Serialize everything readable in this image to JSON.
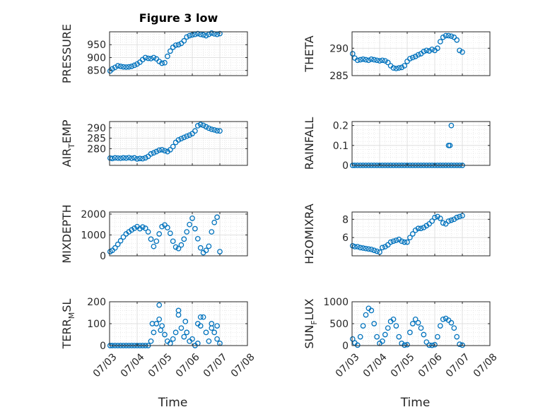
{
  "figure": {
    "title": "Figure 3 low",
    "marker_color": "#0072bd",
    "x_tick_labels": [
      "07/03",
      "07/04",
      "07/05",
      "07/06",
      "07/07",
      "07/08"
    ],
    "xlabel": "Time"
  },
  "chart_data": [
    {
      "type": "scatter",
      "ylabel": "PRESSURE",
      "ylabel_sub": "",
      "ylabel_suffix": "",
      "title": "Figure 3 low",
      "xlim": [
        0,
        5
      ],
      "ylim": [
        830,
        1000
      ],
      "yticks": [
        850,
        900,
        950
      ],
      "grid": true,
      "x": [
        0.02,
        0.1,
        0.2,
        0.3,
        0.4,
        0.5,
        0.6,
        0.7,
        0.8,
        0.9,
        1.0,
        1.1,
        1.2,
        1.3,
        1.4,
        1.5,
        1.6,
        1.7,
        1.8,
        1.9,
        2.0,
        2.1,
        2.2,
        2.3,
        2.4,
        2.5,
        2.6,
        2.7,
        2.8,
        2.9,
        3.0,
        3.1,
        3.2,
        3.3,
        3.4,
        3.5,
        3.6,
        3.7,
        3.8,
        3.9,
        4.0
      ],
      "y": [
        848,
        856,
        862,
        868,
        866,
        864,
        863,
        864,
        866,
        870,
        875,
        882,
        892,
        900,
        897,
        896,
        900,
        895,
        885,
        878,
        880,
        905,
        925,
        940,
        948,
        950,
        955,
        965,
        980,
        985,
        988,
        990,
        993,
        990,
        988,
        985,
        990,
        995,
        992,
        990,
        993
      ]
    },
    {
      "type": "scatter",
      "ylabel": "THETA",
      "ylabel_sub": "",
      "ylabel_suffix": "",
      "xlim": [
        0,
        5
      ],
      "ylim": [
        285,
        293
      ],
      "yticks": [
        285,
        290
      ],
      "grid": true,
      "x": [
        0.02,
        0.1,
        0.2,
        0.3,
        0.4,
        0.5,
        0.6,
        0.7,
        0.8,
        0.9,
        1.0,
        1.1,
        1.2,
        1.3,
        1.4,
        1.5,
        1.6,
        1.7,
        1.8,
        1.9,
        2.0,
        2.1,
        2.2,
        2.3,
        2.4,
        2.5,
        2.6,
        2.7,
        2.8,
        2.9,
        3.0,
        3.1,
        3.2,
        3.3,
        3.4,
        3.5,
        3.6,
        3.7,
        3.8,
        3.9,
        4.0
      ],
      "y": [
        289,
        288.2,
        287.8,
        287.9,
        288.0,
        287.9,
        287.8,
        288.0,
        287.9,
        287.8,
        287.7,
        287.8,
        287.7,
        287.4,
        286.8,
        286.4,
        286.3,
        286.4,
        286.5,
        286.8,
        287.6,
        288.1,
        288.3,
        288.5,
        288.8,
        289.0,
        289.4,
        289.6,
        289.5,
        289.8,
        289.6,
        290.0,
        291.2,
        292.0,
        292.3,
        292.3,
        292.2,
        292.0,
        291.5,
        289.6,
        289.3
      ]
    },
    {
      "type": "scatter",
      "ylabel": "AIR",
      "ylabel_sub": "T",
      "ylabel_suffix": "EMP",
      "xlim": [
        0,
        5
      ],
      "ylim": [
        272,
        293
      ],
      "yticks": [
        280,
        285,
        290
      ],
      "grid": true,
      "x": [
        0.02,
        0.1,
        0.2,
        0.3,
        0.4,
        0.5,
        0.6,
        0.7,
        0.8,
        0.9,
        1.0,
        1.1,
        1.2,
        1.3,
        1.4,
        1.5,
        1.6,
        1.7,
        1.8,
        1.9,
        2.0,
        2.1,
        2.2,
        2.3,
        2.4,
        2.5,
        2.6,
        2.7,
        2.8,
        2.9,
        3.0,
        3.1,
        3.2,
        3.3,
        3.4,
        3.5,
        3.6,
        3.7,
        3.8,
        3.9,
        4.0
      ],
      "y": [
        275.5,
        275.3,
        275.6,
        275.5,
        275.4,
        275.6,
        275.5,
        275.7,
        275.4,
        275.6,
        275.1,
        275.3,
        275.2,
        275.6,
        276.3,
        277.5,
        278.0,
        278.6,
        279.3,
        279.5,
        279.0,
        278.6,
        279.5,
        281.0,
        283.0,
        284.2,
        284.8,
        285.4,
        286.0,
        286.5,
        287.2,
        288.5,
        291.0,
        291.6,
        291.2,
        290.5,
        289.8,
        289.3,
        289.0,
        288.6,
        288.5
      ]
    },
    {
      "type": "scatter",
      "ylabel": "RAINFALL",
      "ylabel_sub": "",
      "ylabel_suffix": "",
      "xlim": [
        0,
        5
      ],
      "ylim": [
        0,
        0.22
      ],
      "yticks": [
        0,
        0.1,
        0.2
      ],
      "grid": true,
      "x": [
        0.02,
        0.1,
        0.2,
        0.3,
        0.4,
        0.5,
        0.6,
        0.7,
        0.8,
        0.9,
        1.0,
        1.1,
        1.2,
        1.3,
        1.4,
        1.5,
        1.6,
        1.7,
        1.8,
        1.9,
        2.0,
        2.1,
        2.2,
        2.3,
        2.4,
        2.5,
        2.6,
        2.7,
        2.8,
        2.9,
        3.0,
        3.1,
        3.2,
        3.3,
        3.4,
        3.5,
        3.6,
        3.7,
        3.8,
        3.9,
        4.0,
        3.5,
        3.55,
        3.6
      ],
      "y": [
        0,
        0,
        0,
        0,
        0,
        0,
        0,
        0,
        0,
        0,
        0,
        0,
        0,
        0,
        0,
        0,
        0,
        0,
        0,
        0,
        0,
        0,
        0,
        0,
        0,
        0,
        0,
        0,
        0,
        0,
        0,
        0,
        0,
        0,
        0,
        0,
        0,
        0,
        0,
        0,
        0,
        0.1,
        0.1,
        0.2
      ]
    },
    {
      "type": "scatter",
      "ylabel": "MIXDEPTH",
      "ylabel_sub": "",
      "ylabel_suffix": "",
      "xlim": [
        0,
        5
      ],
      "ylim": [
        0,
        2100
      ],
      "yticks": [
        0,
        1000,
        2000
      ],
      "grid": true,
      "x": [
        0.02,
        0.1,
        0.2,
        0.3,
        0.4,
        0.5,
        0.6,
        0.7,
        0.8,
        0.9,
        1.0,
        1.1,
        1.2,
        1.3,
        1.4,
        1.5,
        1.6,
        1.7,
        1.8,
        1.9,
        2.0,
        2.1,
        2.2,
        2.3,
        2.4,
        2.5,
        2.6,
        2.7,
        2.8,
        2.9,
        3.0,
        3.1,
        3.2,
        3.3,
        3.4,
        3.5,
        3.6,
        3.7,
        3.8,
        3.9,
        4.0
      ],
      "y": [
        200,
        260,
        380,
        550,
        720,
        900,
        1050,
        1150,
        1240,
        1320,
        1400,
        1300,
        1380,
        1320,
        1150,
        800,
        450,
        700,
        1050,
        1400,
        1480,
        1350,
        1080,
        700,
        420,
        350,
        520,
        800,
        1150,
        1500,
        1800,
        1300,
        820,
        380,
        150,
        260,
        460,
        1150,
        1600,
        1850,
        200
      ]
    },
    {
      "type": "scatter",
      "ylabel": "H2OMIXRA",
      "ylabel_sub": "",
      "ylabel_suffix": "",
      "xlim": [
        0,
        5
      ],
      "ylim": [
        4,
        8.8
      ],
      "yticks": [
        6,
        8
      ],
      "grid": true,
      "x": [
        0.02,
        0.1,
        0.2,
        0.3,
        0.4,
        0.5,
        0.6,
        0.7,
        0.8,
        0.9,
        1.0,
        1.1,
        1.2,
        1.3,
        1.4,
        1.5,
        1.6,
        1.7,
        1.8,
        1.9,
        2.0,
        2.1,
        2.2,
        2.3,
        2.4,
        2.5,
        2.6,
        2.7,
        2.8,
        2.9,
        3.0,
        3.1,
        3.2,
        3.3,
        3.4,
        3.5,
        3.6,
        3.7,
        3.8,
        3.9,
        4.0
      ],
      "y": [
        5.1,
        5.0,
        5.0,
        4.9,
        4.85,
        4.8,
        4.75,
        4.7,
        4.6,
        4.5,
        4.4,
        4.9,
        5.0,
        5.2,
        5.5,
        5.6,
        5.7,
        5.8,
        5.6,
        5.5,
        5.5,
        6.0,
        6.4,
        6.8,
        7.0,
        7.0,
        7.1,
        7.3,
        7.5,
        7.8,
        8.2,
        8.3,
        8.1,
        7.6,
        7.5,
        7.8,
        7.9,
        8.0,
        8.2,
        8.3,
        8.4
      ]
    },
    {
      "type": "scatter",
      "ylabel": "TERR",
      "ylabel_sub": "M",
      "ylabel_suffix": "SL",
      "xlim": [
        0,
        5
      ],
      "ylim": [
        0,
        200
      ],
      "yticks": [
        0,
        100,
        200
      ],
      "grid": true,
      "x": [
        0.02,
        0.1,
        0.2,
        0.3,
        0.4,
        0.5,
        0.6,
        0.7,
        0.8,
        0.9,
        1.0,
        1.1,
        1.2,
        1.3,
        1.4,
        1.5,
        1.6,
        1.7,
        1.8,
        1.9,
        2.0,
        2.1,
        2.2,
        2.3,
        2.4,
        2.5,
        2.6,
        2.7,
        2.8,
        2.9,
        3.0,
        3.1,
        3.2,
        3.3,
        3.4,
        3.5,
        3.6,
        3.7,
        3.8,
        3.9,
        4.0,
        1.55,
        1.8,
        1.85,
        2.5,
        2.75,
        3.2,
        3.3,
        3.7,
        3.9
      ],
      "y": [
        0,
        0,
        0,
        0,
        0,
        0,
        0,
        0,
        0,
        0,
        0,
        0,
        0,
        0,
        0,
        20,
        60,
        100,
        185,
        90,
        50,
        20,
        10,
        30,
        60,
        140,
        80,
        40,
        60,
        20,
        30,
        0,
        10,
        90,
        130,
        60,
        20,
        80,
        60,
        30,
        10,
        100,
        120,
        70,
        160,
        110,
        100,
        130,
        100,
        90
      ]
    },
    {
      "type": "scatter",
      "ylabel": "SUN",
      "ylabel_sub": "F",
      "ylabel_suffix": "LUX",
      "xlim": [
        0,
        5
      ],
      "ylim": [
        0,
        1000
      ],
      "yticks": [
        0,
        500,
        1000
      ],
      "grid": true,
      "x": [
        0.02,
        0.1,
        0.2,
        0.3,
        0.4,
        0.5,
        0.6,
        0.7,
        0.8,
        0.9,
        1.0,
        1.1,
        1.2,
        1.3,
        1.4,
        1.5,
        1.6,
        1.7,
        1.8,
        1.9,
        2.0,
        2.1,
        2.2,
        2.3,
        2.4,
        2.5,
        2.6,
        2.7,
        2.8,
        2.9,
        3.0,
        3.1,
        3.2,
        3.3,
        3.4,
        3.5,
        3.6,
        3.7,
        3.8,
        3.9,
        4.0
      ],
      "y": [
        150,
        60,
        10,
        200,
        450,
        700,
        850,
        800,
        500,
        200,
        50,
        100,
        250,
        400,
        550,
        600,
        450,
        200,
        50,
        10,
        20,
        300,
        500,
        600,
        520,
        400,
        250,
        80,
        10,
        5,
        20,
        200,
        450,
        600,
        620,
        580,
        520,
        400,
        200,
        30,
        10
      ]
    }
  ]
}
